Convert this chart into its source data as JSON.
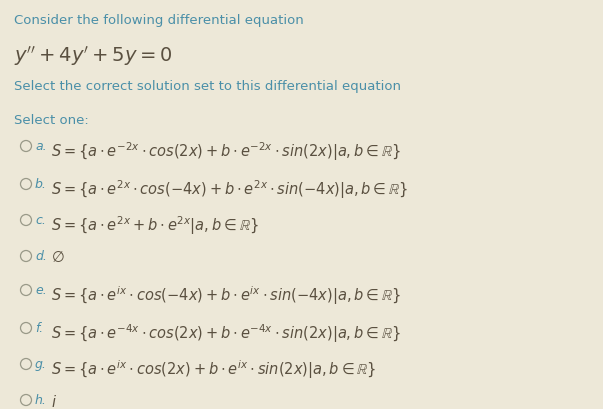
{
  "background_color": "#ede8d8",
  "title_color": "#4a8fa8",
  "text_color": "#5a5040",
  "circle_color": "#999988",
  "header1": "Consider the following differential equation",
  "equation": "$y'' + 4y' + 5y = 0$",
  "header2": "Select the correct solution set to this differential equation",
  "select_label": "Select one:",
  "options": [
    {
      "label": "a.",
      "math": "$S = \\{a \\cdot e^{-2x} \\cdot cos(2x) + b \\cdot e^{-2x} \\cdot sin(2x)|a, b \\in \\mathbb{R}\\}$"
    },
    {
      "label": "b.",
      "math": "$S = \\{a \\cdot e^{2x} \\cdot cos(-4x) + b \\cdot e^{2x} \\cdot sin(-4x)|a, b \\in \\mathbb{R}\\}$"
    },
    {
      "label": "c.",
      "math": "$S = \\{a \\cdot e^{2x} + b \\cdot e^{2x}|a, b \\in \\mathbb{R}\\}$"
    },
    {
      "label": "d.",
      "math": "$\\emptyset$"
    },
    {
      "label": "e.",
      "math": "$S = \\{a \\cdot e^{ix} \\cdot cos(-4x) + b \\cdot e^{ix} \\cdot sin(-4x)|a, b \\in \\mathbb{R}\\}$"
    },
    {
      "label": "f.",
      "math": "$S = \\{a \\cdot e^{-4x} \\cdot cos(2x) + b \\cdot e^{-4x} \\cdot sin(2x)|a, b \\in \\mathbb{R}\\}$"
    },
    {
      "label": "g.",
      "math": "$S = \\{a \\cdot e^{ix} \\cdot cos(2x) + b \\cdot e^{ix} \\cdot sin(2x)|a, b \\in \\mathbb{R}\\}$"
    },
    {
      "label": "h.",
      "math": "$i$"
    }
  ],
  "figsize": [
    6.03,
    4.1
  ],
  "dpi": 100,
  "header1_fs": 9.5,
  "equation_fs": 14,
  "header2_fs": 9.5,
  "select_fs": 9.5,
  "option_fs": 10.5,
  "label_fs": 9.0
}
